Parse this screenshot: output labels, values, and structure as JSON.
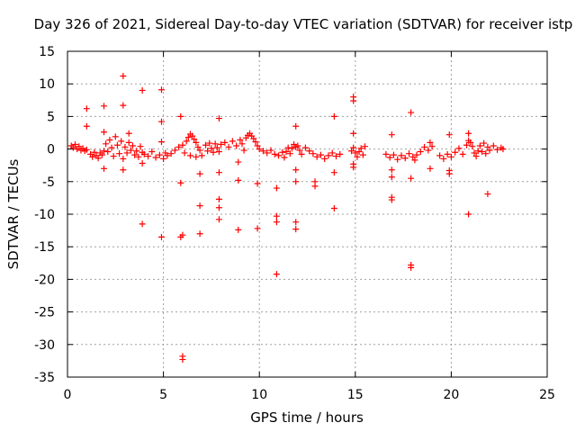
{
  "chart_data": {
    "type": "scatter",
    "title": "Day 326 of 2021, Sidereal Day-to-day VTEC variation (SDTVAR) for receiver istp",
    "xlabel": "GPS time / hours",
    "ylabel": "SDTVAR / TECUs",
    "xlim": [
      0,
      25
    ],
    "ylim": [
      -35,
      15
    ],
    "xticks": [
      0,
      5,
      10,
      15,
      20,
      25
    ],
    "yticks": [
      15,
      10,
      5,
      0,
      -5,
      -10,
      -15,
      -20,
      -25,
      -30,
      -35
    ],
    "grid": true,
    "marker": "+",
    "series": [
      {
        "name": "istp",
        "color": "#ff0000",
        "points": [
          [
            0.2,
            0.5
          ],
          [
            0.3,
            0.2
          ],
          [
            0.4,
            0.7
          ],
          [
            0.5,
            0.0
          ],
          [
            0.6,
            0.4
          ],
          [
            0.7,
            -0.2
          ],
          [
            0.8,
            0.1
          ],
          [
            0.9,
            -0.3
          ],
          [
            1.0,
            -0.1
          ],
          [
            1.2,
            -0.8
          ],
          [
            1.3,
            -1.2
          ],
          [
            1.4,
            -0.5
          ],
          [
            1.5,
            -1.0
          ],
          [
            1.6,
            -1.4
          ],
          [
            1.7,
            -0.6
          ],
          [
            1.8,
            -0.9
          ],
          [
            1.9,
            -0.3
          ],
          [
            2.0,
            0.8
          ],
          [
            2.1,
            -0.4
          ],
          [
            2.2,
            1.4
          ],
          [
            2.3,
            0.2
          ],
          [
            2.4,
            -1.1
          ],
          [
            2.5,
            1.9
          ],
          [
            2.6,
            0.6
          ],
          [
            2.7,
            -0.7
          ],
          [
            2.8,
            1.2
          ],
          [
            2.9,
            -1.5
          ],
          [
            3.0,
            0.3
          ],
          [
            3.1,
            -0.6
          ],
          [
            3.2,
            1.0
          ],
          [
            3.3,
            -0.2
          ],
          [
            3.4,
            0.5
          ],
          [
            3.5,
            -0.9
          ],
          [
            3.6,
            -0.3
          ],
          [
            3.7,
            -1.2
          ],
          [
            3.8,
            0.4
          ],
          [
            3.9,
            -0.5
          ],
          [
            4.0,
            -0.8
          ],
          [
            4.2,
            -1.1
          ],
          [
            4.4,
            -0.4
          ],
          [
            4.6,
            -1.3
          ],
          [
            4.8,
            -0.9
          ],
          [
            5.0,
            -1.5
          ],
          [
            5.1,
            -0.6
          ],
          [
            5.2,
            -1.0
          ],
          [
            5.4,
            -0.7
          ],
          [
            5.6,
            -0.2
          ],
          [
            5.8,
            0.3
          ],
          [
            6.0,
            0.6
          ],
          [
            6.2,
            1.2
          ],
          [
            6.3,
            1.8
          ],
          [
            6.4,
            2.3
          ],
          [
            6.5,
            2.0
          ],
          [
            6.6,
            1.5
          ],
          [
            6.7,
            1.0
          ],
          [
            6.8,
            0.3
          ],
          [
            6.9,
            -0.2
          ],
          [
            6.1,
            -0.6
          ],
          [
            6.4,
            -1.0
          ],
          [
            6.7,
            -1.2
          ],
          [
            7.0,
            -1.0
          ],
          [
            7.2,
            0.6
          ],
          [
            7.3,
            -0.3
          ],
          [
            7.4,
            0.9
          ],
          [
            7.5,
            0.1
          ],
          [
            7.6,
            -0.5
          ],
          [
            7.7,
            0.8
          ],
          [
            7.8,
            0.2
          ],
          [
            7.9,
            -0.4
          ],
          [
            8.0,
            0.7
          ],
          [
            8.2,
            1.0
          ],
          [
            8.4,
            0.3
          ],
          [
            8.6,
            1.2
          ],
          [
            8.8,
            0.5
          ],
          [
            9.0,
            1.4
          ],
          [
            9.1,
            0.8
          ],
          [
            9.2,
            -0.2
          ],
          [
            9.3,
            1.7
          ],
          [
            9.4,
            2.1
          ],
          [
            9.5,
            2.4
          ],
          [
            9.6,
            2.0
          ],
          [
            9.7,
            1.6
          ],
          [
            9.8,
            1.1
          ],
          [
            9.9,
            0.5
          ],
          [
            10.0,
            0.0
          ],
          [
            10.2,
            -0.3
          ],
          [
            10.4,
            -0.6
          ],
          [
            10.6,
            -0.2
          ],
          [
            10.8,
            -0.8
          ],
          [
            11.0,
            -1.0
          ],
          [
            11.2,
            -0.5
          ],
          [
            11.3,
            -1.3
          ],
          [
            11.4,
            -0.4
          ],
          [
            11.5,
            0.2
          ],
          [
            11.6,
            -0.7
          ],
          [
            11.7,
            0.1
          ],
          [
            11.8,
            0.7
          ],
          [
            11.9,
            0.3
          ],
          [
            12.0,
            0.5
          ],
          [
            12.1,
            -0.2
          ],
          [
            12.2,
            -0.8
          ],
          [
            12.4,
            0.2
          ],
          [
            12.6,
            -0.3
          ],
          [
            12.8,
            -0.7
          ],
          [
            13.0,
            -1.2
          ],
          [
            13.2,
            -0.9
          ],
          [
            13.4,
            -1.5
          ],
          [
            13.6,
            -1.0
          ],
          [
            13.8,
            -0.6
          ],
          [
            14.0,
            -1.1
          ],
          [
            14.2,
            -0.8
          ],
          [
            14.8,
            -0.3
          ],
          [
            14.9,
            0.2
          ],
          [
            15.0,
            -0.6
          ],
          [
            15.1,
            -1.2
          ],
          [
            15.2,
            -0.4
          ],
          [
            15.3,
            0.1
          ],
          [
            15.4,
            -0.9
          ],
          [
            15.5,
            0.4
          ],
          [
            16.6,
            -0.8
          ],
          [
            16.8,
            -1.3
          ],
          [
            17.0,
            -0.9
          ],
          [
            17.2,
            -1.6
          ],
          [
            17.4,
            -1.0
          ],
          [
            17.6,
            -1.4
          ],
          [
            17.8,
            -0.7
          ],
          [
            18.0,
            -1.2
          ],
          [
            18.1,
            -1.7
          ],
          [
            18.2,
            -0.9
          ],
          [
            18.4,
            -0.4
          ],
          [
            18.6,
            0.3
          ],
          [
            18.8,
            -0.2
          ],
          [
            19.0,
            0.4
          ],
          [
            19.4,
            -1.0
          ],
          [
            19.6,
            -1.5
          ],
          [
            19.8,
            -0.8
          ],
          [
            20.0,
            -1.2
          ],
          [
            20.2,
            -0.5
          ],
          [
            20.4,
            0.1
          ],
          [
            20.6,
            -0.8
          ],
          [
            20.8,
            0.6
          ],
          [
            20.9,
            1.3
          ],
          [
            21.0,
            1.0
          ],
          [
            21.1,
            0.4
          ],
          [
            21.2,
            -0.6
          ],
          [
            21.3,
            -1.1
          ],
          [
            21.4,
            -0.3
          ],
          [
            21.5,
            0.5
          ],
          [
            21.6,
            -0.4
          ],
          [
            21.7,
            0.9
          ],
          [
            21.8,
            -0.7
          ],
          [
            21.9,
            0.3
          ],
          [
            22.0,
            -0.2
          ],
          [
            22.2,
            0.5
          ],
          [
            22.4,
            -0.1
          ],
          [
            22.6,
            0.2
          ],
          [
            22.7,
            0.0
          ],
          [
            1.0,
            6.2
          ],
          [
            1.0,
            3.5
          ],
          [
            1.9,
            6.6
          ],
          [
            1.9,
            2.6
          ],
          [
            1.9,
            -3.0
          ],
          [
            2.9,
            11.2
          ],
          [
            2.9,
            6.7
          ],
          [
            2.9,
            -3.2
          ],
          [
            3.2,
            2.4
          ],
          [
            3.9,
            9.0
          ],
          [
            3.9,
            -2.2
          ],
          [
            3.9,
            -11.5
          ],
          [
            4.9,
            9.1
          ],
          [
            4.9,
            4.2
          ],
          [
            4.9,
            1.1
          ],
          [
            4.9,
            -13.5
          ],
          [
            5.9,
            5.0
          ],
          [
            5.9,
            -5.2
          ],
          [
            5.9,
            -13.5
          ],
          [
            6.0,
            -13.2
          ],
          [
            6.0,
            -31.8
          ],
          [
            6.0,
            -32.3
          ],
          [
            6.9,
            -3.8
          ],
          [
            6.9,
            -8.7
          ],
          [
            6.9,
            -13.0
          ],
          [
            7.9,
            4.7
          ],
          [
            7.9,
            -3.6
          ],
          [
            7.9,
            -7.7
          ],
          [
            7.9,
            -9.0
          ],
          [
            7.9,
            -10.8
          ],
          [
            8.9,
            -2.0
          ],
          [
            8.9,
            -4.8
          ],
          [
            8.9,
            -12.4
          ],
          [
            9.9,
            -5.3
          ],
          [
            9.9,
            -12.2
          ],
          [
            10.9,
            -6.0
          ],
          [
            10.9,
            -10.3
          ],
          [
            10.9,
            -11.2
          ],
          [
            10.9,
            -19.2
          ],
          [
            11.9,
            3.5
          ],
          [
            11.9,
            -3.2
          ],
          [
            11.9,
            -5.0
          ],
          [
            11.9,
            -11.2
          ],
          [
            11.9,
            -12.3
          ],
          [
            12.9,
            -5.0
          ],
          [
            12.9,
            -5.7
          ],
          [
            13.9,
            5.0
          ],
          [
            13.9,
            -3.6
          ],
          [
            13.9,
            -9.1
          ],
          [
            14.9,
            8.0
          ],
          [
            14.9,
            7.4
          ],
          [
            14.9,
            2.4
          ],
          [
            14.9,
            -2.3
          ],
          [
            14.9,
            -2.8
          ],
          [
            16.9,
            2.2
          ],
          [
            16.9,
            -3.2
          ],
          [
            16.9,
            -4.3
          ],
          [
            16.9,
            -7.4
          ],
          [
            16.9,
            -7.8
          ],
          [
            17.9,
            5.6
          ],
          [
            17.9,
            -4.5
          ],
          [
            17.9,
            -17.8
          ],
          [
            17.9,
            -18.2
          ],
          [
            18.9,
            1.0
          ],
          [
            18.9,
            -3.0
          ],
          [
            19.9,
            2.2
          ],
          [
            19.9,
            -3.3
          ],
          [
            19.9,
            -3.8
          ],
          [
            20.9,
            2.4
          ],
          [
            20.9,
            -10.0
          ],
          [
            21.9,
            -6.9
          ]
        ]
      }
    ]
  }
}
